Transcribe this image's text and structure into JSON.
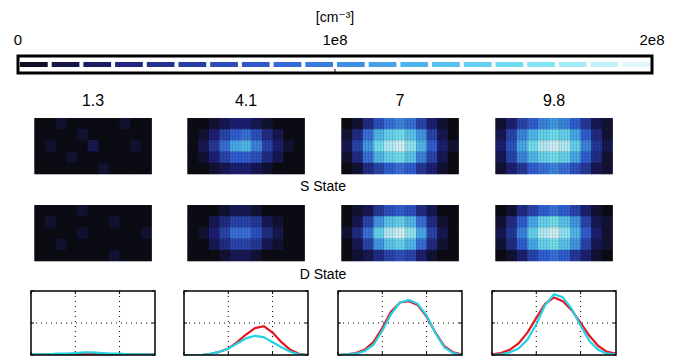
{
  "chart_data": [
    {
      "type": "heatmap",
      "colorbar": {
        "label": "[cm⁻³]",
        "range": [
          0,
          200000000.0
        ],
        "ticks": [
          0,
          {
            "value": 100000000.0,
            "label": "1e8"
          },
          {
            "value": 200000000.0,
            "label": "2e8"
          }
        ]
      },
      "columns": [
        1.3,
        4.1,
        7,
        9.8
      ],
      "rows": [
        {
          "label": "S State",
          "cells": [
            [
              [
                0,
                0,
                10000000.0,
                0,
                0,
                0,
                0,
                0,
                10000000.0,
                0,
                0
              ],
              [
                0,
                0,
                0,
                0,
                10000000.0,
                0,
                0,
                0,
                0,
                0,
                0
              ],
              [
                0,
                10000000.0,
                0,
                0,
                0,
                20000000.0,
                0,
                0,
                0,
                10000000.0,
                0
              ],
              [
                0,
                0,
                0,
                10000000.0,
                0,
                0,
                0,
                0,
                0,
                0,
                0
              ],
              [
                0,
                0,
                0,
                0,
                0,
                0,
                10000000.0,
                0,
                0,
                0,
                0
              ]
            ],
            [
              [
                0,
                0,
                10000000.0,
                20000000.0,
                30000000.0,
                30000000.0,
                20000000.0,
                10000000.0,
                0,
                0,
                0
              ],
              [
                0,
                10000000.0,
                30000000.0,
                60000000.0,
                80000000.0,
                90000000.0,
                70000000.0,
                40000000.0,
                20000000.0,
                0,
                0
              ],
              [
                0,
                20000000.0,
                50000000.0,
                90000000.0,
                120000000.0,
                130000000.0,
                100000000.0,
                60000000.0,
                30000000.0,
                10000000.0,
                0
              ],
              [
                0,
                10000000.0,
                30000000.0,
                60000000.0,
                80000000.0,
                80000000.0,
                70000000.0,
                40000000.0,
                20000000.0,
                0,
                0
              ],
              [
                0,
                0,
                10000000.0,
                20000000.0,
                30000000.0,
                30000000.0,
                20000000.0,
                10000000.0,
                0,
                0,
                0
              ]
            ],
            [
              [
                0,
                10000000.0,
                40000000.0,
                70000000.0,
                90000000.0,
                100000000.0,
                90000000.0,
                60000000.0,
                30000000.0,
                10000000.0,
                0
              ],
              [
                10000000.0,
                40000000.0,
                90000000.0,
                130000000.0,
                150000000.0,
                160000000.0,
                140000000.0,
                110000000.0,
                60000000.0,
                20000000.0,
                0
              ],
              [
                20000000.0,
                60000000.0,
                110000000.0,
                160000000.0,
                180000000.0,
                190000000.0,
                170000000.0,
                130000000.0,
                80000000.0,
                30000000.0,
                10000000.0
              ],
              [
                10000000.0,
                40000000.0,
                90000000.0,
                130000000.0,
                150000000.0,
                160000000.0,
                140000000.0,
                100000000.0,
                60000000.0,
                20000000.0,
                0
              ],
              [
                0,
                10000000.0,
                40000000.0,
                60000000.0,
                80000000.0,
                90000000.0,
                80000000.0,
                50000000.0,
                30000000.0,
                10000000.0,
                0
              ]
            ],
            [
              [
                10000000.0,
                30000000.0,
                60000000.0,
                80000000.0,
                100000000.0,
                110000000.0,
                100000000.0,
                80000000.0,
                50000000.0,
                20000000.0,
                10000000.0
              ],
              [
                20000000.0,
                60000000.0,
                100000000.0,
                130000000.0,
                150000000.0,
                160000000.0,
                150000000.0,
                120000000.0,
                80000000.0,
                40000000.0,
                10000000.0
              ],
              [
                30000000.0,
                70000000.0,
                120000000.0,
                160000000.0,
                180000000.0,
                190000000.0,
                180000000.0,
                150000000.0,
                100000000.0,
                50000000.0,
                20000000.0
              ],
              [
                20000000.0,
                60000000.0,
                100000000.0,
                130000000.0,
                150000000.0,
                160000000.0,
                150000000.0,
                120000000.0,
                80000000.0,
                40000000.0,
                10000000.0
              ],
              [
                10000000.0,
                30000000.0,
                50000000.0,
                80000000.0,
                90000000.0,
                100000000.0,
                90000000.0,
                70000000.0,
                50000000.0,
                20000000.0,
                10000000.0
              ]
            ]
          ]
        },
        {
          "label": "D State",
          "cells": [
            [
              [
                0,
                0,
                0,
                0,
                10000000.0,
                0,
                0,
                0,
                0,
                0,
                0
              ],
              [
                0,
                10000000.0,
                0,
                0,
                0,
                0,
                0,
                10000000.0,
                0,
                0,
                0
              ],
              [
                0,
                0,
                0,
                0,
                10000000.0,
                0,
                0,
                0,
                0,
                0,
                10000000.0
              ],
              [
                0,
                0,
                10000000.0,
                0,
                0,
                0,
                0,
                0,
                0,
                0,
                0
              ],
              [
                0,
                0,
                0,
                0,
                0,
                0,
                0,
                10000000.0,
                0,
                0,
                0
              ]
            ],
            [
              [
                0,
                0,
                0,
                10000000.0,
                20000000.0,
                20000000.0,
                10000000.0,
                0,
                0,
                0,
                0
              ],
              [
                0,
                0,
                20000000.0,
                40000000.0,
                60000000.0,
                60000000.0,
                50000000.0,
                20000000.0,
                10000000.0,
                0,
                0
              ],
              [
                0,
                10000000.0,
                30000000.0,
                60000000.0,
                90000000.0,
                90000000.0,
                70000000.0,
                40000000.0,
                20000000.0,
                0,
                0
              ],
              [
                0,
                0,
                20000000.0,
                40000000.0,
                60000000.0,
                60000000.0,
                50000000.0,
                20000000.0,
                10000000.0,
                0,
                0
              ],
              [
                0,
                0,
                0,
                10000000.0,
                20000000.0,
                20000000.0,
                10000000.0,
                0,
                0,
                0,
                0
              ]
            ],
            [
              [
                0,
                10000000.0,
                20000000.0,
                50000000.0,
                70000000.0,
                80000000.0,
                70000000.0,
                40000000.0,
                20000000.0,
                0,
                0
              ],
              [
                0,
                20000000.0,
                60000000.0,
                110000000.0,
                140000000.0,
                150000000.0,
                130000000.0,
                90000000.0,
                40000000.0,
                10000000.0,
                0
              ],
              [
                10000000.0,
                40000000.0,
                90000000.0,
                150000000.0,
                180000000.0,
                190000000.0,
                170000000.0,
                120000000.0,
                60000000.0,
                20000000.0,
                0
              ],
              [
                0,
                20000000.0,
                60000000.0,
                110000000.0,
                140000000.0,
                150000000.0,
                130000000.0,
                90000000.0,
                40000000.0,
                10000000.0,
                0
              ],
              [
                0,
                10000000.0,
                20000000.0,
                40000000.0,
                60000000.0,
                70000000.0,
                60000000.0,
                30000000.0,
                10000000.0,
                0,
                0
              ]
            ],
            [
              [
                0,
                10000000.0,
                40000000.0,
                60000000.0,
                80000000.0,
                90000000.0,
                80000000.0,
                60000000.0,
                30000000.0,
                10000000.0,
                0
              ],
              [
                10000000.0,
                40000000.0,
                80000000.0,
                120000000.0,
                150000000.0,
                160000000.0,
                140000000.0,
                110000000.0,
                60000000.0,
                20000000.0,
                10000000.0
              ],
              [
                20000000.0,
                50000000.0,
                100000000.0,
                150000000.0,
                180000000.0,
                190000000.0,
                170000000.0,
                130000000.0,
                80000000.0,
                30000000.0,
                10000000.0
              ],
              [
                10000000.0,
                40000000.0,
                80000000.0,
                120000000.0,
                150000000.0,
                160000000.0,
                140000000.0,
                110000000.0,
                60000000.0,
                20000000.0,
                10000000.0
              ],
              [
                0,
                10000000.0,
                30000000.0,
                60000000.0,
                80000000.0,
                90000000.0,
                80000000.0,
                50000000.0,
                30000000.0,
                10000000.0,
                0
              ]
            ]
          ]
        }
      ]
    },
    {
      "type": "line",
      "x": [
        0,
        1,
        2,
        3,
        4,
        5,
        6,
        7,
        8,
        9,
        10,
        11,
        12,
        13,
        14
      ],
      "xlim": [
        0,
        14
      ],
      "ylim": [
        0,
        1
      ],
      "xticks": [
        0,
        5,
        10
      ],
      "yticks": [
        0,
        0.5,
        1
      ],
      "grid": true,
      "tick_labels": false,
      "panels": [
        {
          "series": [
            {
              "color": "#e8141e",
              "values": [
                0.01,
                0.01,
                0.01,
                0.01,
                0.01,
                0.01,
                0.02,
                0.02,
                0.02,
                0.01,
                0.01,
                0.01,
                0.01,
                0.01,
                0.01
              ]
            },
            {
              "color": "#22d3e6",
              "values": [
                0.01,
                0.01,
                0.01,
                0.02,
                0.02,
                0.03,
                0.04,
                0.04,
                0.03,
                0.02,
                0.02,
                0.01,
                0.01,
                0.01,
                0.01
              ]
            }
          ]
        },
        {
          "series": [
            {
              "color": "#e8141e",
              "values": [
                0,
                0,
                0,
                0.02,
                0.05,
                0.1,
                0.2,
                0.32,
                0.42,
                0.45,
                0.35,
                0.2,
                0.08,
                0.02,
                0
              ]
            },
            {
              "color": "#22d3e6",
              "values": [
                0,
                0,
                0,
                0.02,
                0.05,
                0.1,
                0.18,
                0.26,
                0.3,
                0.28,
                0.2,
                0.12,
                0.05,
                0.01,
                0
              ]
            }
          ]
        },
        {
          "series": [
            {
              "color": "#e8141e",
              "values": [
                0,
                0.01,
                0.03,
                0.08,
                0.2,
                0.42,
                0.68,
                0.82,
                0.84,
                0.78,
                0.6,
                0.35,
                0.14,
                0.04,
                0.01
              ]
            },
            {
              "color": "#22d3e6",
              "values": [
                0,
                0.01,
                0.02,
                0.06,
                0.16,
                0.38,
                0.64,
                0.82,
                0.86,
                0.8,
                0.62,
                0.34,
                0.12,
                0.03,
                0
              ]
            }
          ]
        },
        {
          "series": [
            {
              "color": "#e8141e",
              "values": [
                0.01,
                0.03,
                0.08,
                0.18,
                0.35,
                0.58,
                0.8,
                0.9,
                0.84,
                0.7,
                0.5,
                0.3,
                0.14,
                0.05,
                0.02
              ]
            },
            {
              "color": "#22d3e6",
              "values": [
                0,
                0.01,
                0.04,
                0.1,
                0.24,
                0.48,
                0.78,
                0.95,
                0.9,
                0.72,
                0.46,
                0.22,
                0.08,
                0.02,
                0.01
              ]
            }
          ]
        }
      ]
    }
  ]
}
